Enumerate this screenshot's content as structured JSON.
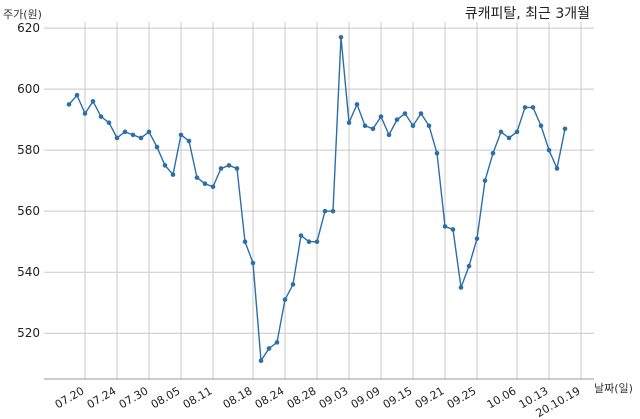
{
  "chart_data": {
    "type": "line",
    "title": "큐캐피탈, 최근 3개월",
    "ylabel": "주가(원)",
    "xlabel": "날짜(일)",
    "ylim": [
      505,
      622
    ],
    "yticks": [
      520,
      540,
      560,
      580,
      600,
      620
    ],
    "grid": true,
    "x_tick_labels": [
      "07.20",
      "07.24",
      "07.30",
      "08.05",
      "08.11",
      "08.18",
      "08.24",
      "08.28",
      "09.03",
      "09.09",
      "09.15",
      "09.21",
      "09.25",
      "10.06",
      "10.13",
      "20.10.19"
    ],
    "x_tick_indices": [
      2,
      6,
      10,
      14,
      18,
      23,
      27,
      31,
      35,
      39,
      43,
      47,
      51,
      56,
      60,
      64
    ],
    "series": [
      {
        "values": [
          595,
          598,
          592,
          596,
          591,
          589,
          584,
          586,
          585,
          584,
          586,
          581,
          575,
          572,
          585,
          583,
          571,
          569,
          568,
          574,
          575,
          574,
          550,
          543,
          511,
          515,
          517,
          531,
          536,
          552,
          550,
          550,
          560,
          560,
          617,
          589,
          595,
          588,
          587,
          591,
          585,
          590,
          592,
          588,
          592,
          588,
          579,
          555,
          554,
          535,
          542,
          551,
          570,
          579,
          586,
          584,
          586,
          594,
          594,
          588,
          580,
          574,
          587
        ]
      }
    ],
    "color": "#2b6fa6"
  }
}
